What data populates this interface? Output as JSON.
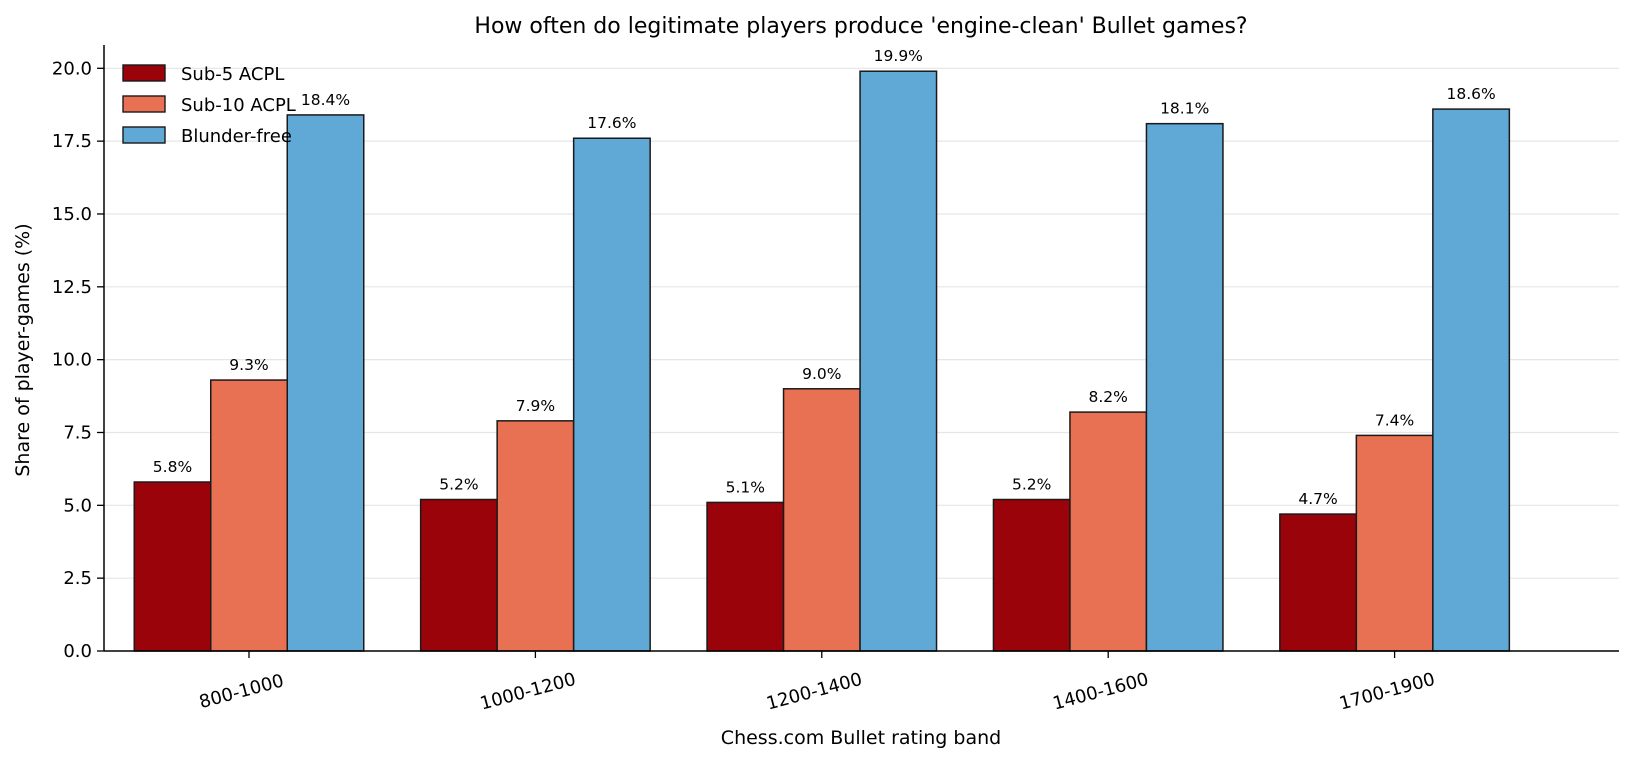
{
  "chart_data": {
    "type": "bar",
    "title": "How often do legitimate players produce 'engine-clean' Bullet games?",
    "xlabel": "Chess.com Bullet rating band",
    "ylabel": "Share of player-games (%)",
    "categories": [
      "800-1000",
      "1000-1200",
      "1200-1400",
      "1400-1600",
      "1700-1900"
    ],
    "series": [
      {
        "name": "Sub-5 ACPL",
        "color": "#9b030a",
        "values": [
          5.8,
          5.2,
          5.1,
          5.2,
          4.7
        ],
        "labels": [
          "5.8%",
          "5.2%",
          "5.1%",
          "5.2%",
          "4.7%"
        ]
      },
      {
        "name": "Sub-10 ACPL",
        "color": "#e87153",
        "values": [
          9.3,
          7.9,
          9.0,
          8.2,
          7.4
        ],
        "labels": [
          "9.3%",
          "7.9%",
          "9.0%",
          "8.2%",
          "7.4%"
        ]
      },
      {
        "name": "Blunder-free",
        "color": "#60a8d5",
        "values": [
          18.4,
          17.6,
          19.9,
          18.1,
          18.6
        ],
        "labels": [
          "18.4%",
          "17.6%",
          "19.9%",
          "18.1%",
          "18.6%"
        ]
      }
    ],
    "ylim": [
      0,
      20.8
    ],
    "yticks": [
      "0.0",
      "2.5",
      "5.0",
      "7.5",
      "10.0",
      "12.5",
      "15.0",
      "17.5",
      "20.0"
    ],
    "grid": "horizontal",
    "legend": "top-left"
  }
}
